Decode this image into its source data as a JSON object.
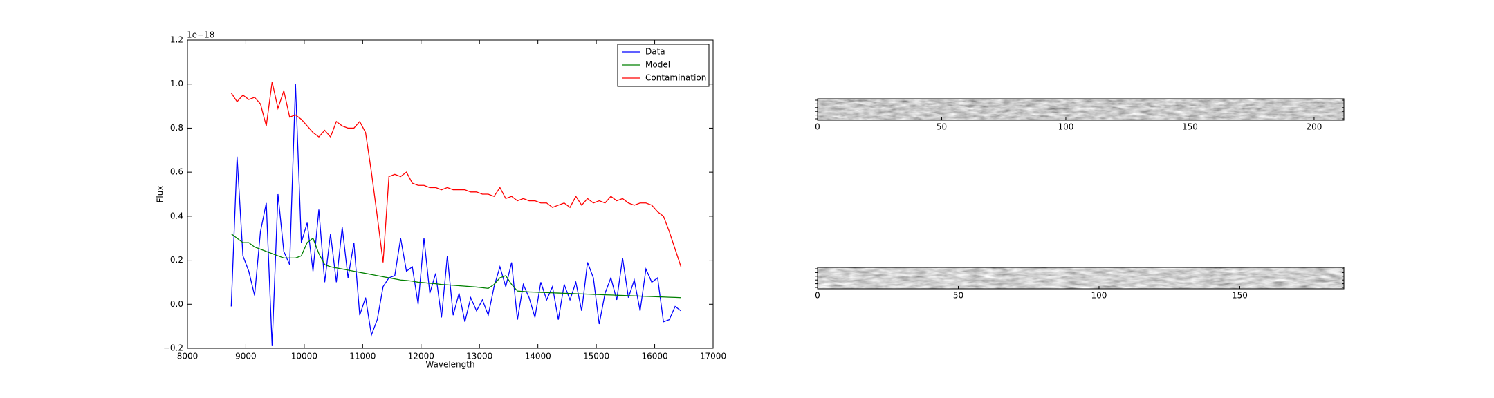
{
  "chart_data": [
    {
      "type": "line",
      "offset_text": "1e−18",
      "x_label": "Wavelength",
      "y_label": "Flux",
      "x": [
        8750,
        8850,
        8950,
        9050,
        9150,
        9250,
        9350,
        9450,
        9550,
        9650,
        9750,
        9850,
        9950,
        10050,
        10150,
        10250,
        10350,
        10450,
        10550,
        10650,
        10750,
        10850,
        10950,
        11050,
        11150,
        11250,
        11350,
        11450,
        11550,
        11650,
        11750,
        11850,
        11950,
        12050,
        12150,
        12250,
        12350,
        12450,
        12550,
        12650,
        12750,
        12850,
        12950,
        13050,
        13150,
        13250,
        13350,
        13450,
        13550,
        13650,
        13750,
        13850,
        13950,
        14050,
        14150,
        14250,
        14350,
        14450,
        14550,
        14650,
        14750,
        14850,
        14950,
        15050,
        15150,
        15250,
        15350,
        15450,
        15550,
        15650,
        15750,
        15850,
        15950,
        16050,
        16150,
        16250,
        16350,
        16450
      ],
      "series": [
        {
          "name": "Data",
          "color": "#0000ff",
          "values": [
            -0.01,
            0.67,
            0.22,
            0.15,
            0.04,
            0.33,
            0.46,
            -0.19,
            0.5,
            0.24,
            0.18,
            1.0,
            0.28,
            0.37,
            0.15,
            0.43,
            0.1,
            0.32,
            0.1,
            0.35,
            0.12,
            0.28,
            -0.05,
            0.03,
            -0.14,
            -0.07,
            0.08,
            0.12,
            0.13,
            0.3,
            0.15,
            0.17,
            0.0,
            0.3,
            0.05,
            0.14,
            -0.06,
            0.22,
            -0.05,
            0.05,
            -0.08,
            0.03,
            -0.03,
            0.02,
            -0.05,
            0.08,
            0.17,
            0.08,
            0.19,
            -0.07,
            0.09,
            0.03,
            -0.06,
            0.1,
            0.02,
            0.08,
            -0.07,
            0.09,
            0.02,
            0.1,
            -0.03,
            0.19,
            0.12,
            -0.09,
            0.05,
            0.12,
            0.02,
            0.21,
            0.03,
            0.11,
            -0.03,
            0.16,
            0.1,
            0.12,
            -0.08,
            -0.07,
            -0.01,
            -0.03
          ]
        },
        {
          "name": "Model",
          "color": "#008000",
          "values": [
            0.32,
            0.3,
            0.28,
            0.28,
            0.26,
            0.25,
            0.24,
            0.23,
            0.22,
            0.21,
            0.21,
            0.21,
            0.22,
            0.28,
            0.3,
            0.23,
            0.18,
            0.17,
            0.165,
            0.16,
            0.155,
            0.15,
            0.145,
            0.14,
            0.135,
            0.13,
            0.125,
            0.12,
            0.115,
            0.11,
            0.108,
            0.105,
            0.1,
            0.098,
            0.095,
            0.093,
            0.09,
            0.088,
            0.086,
            0.084,
            0.082,
            0.08,
            0.078,
            0.075,
            0.072,
            0.09,
            0.12,
            0.13,
            0.09,
            0.06,
            0.058,
            0.056,
            0.055,
            0.054,
            0.053,
            0.052,
            0.051,
            0.05,
            0.049,
            0.048,
            0.047,
            0.046,
            0.045,
            0.044,
            0.043,
            0.042,
            0.041,
            0.04,
            0.039,
            0.038,
            0.037,
            0.036,
            0.035,
            0.034,
            0.033,
            0.032,
            0.031,
            0.03
          ]
        },
        {
          "name": "Contamination",
          "color": "#ff0000",
          "values": [
            0.96,
            0.92,
            0.95,
            0.93,
            0.94,
            0.91,
            0.81,
            1.01,
            0.89,
            0.97,
            0.85,
            0.86,
            0.84,
            0.81,
            0.78,
            0.76,
            0.79,
            0.76,
            0.83,
            0.81,
            0.8,
            0.8,
            0.83,
            0.78,
            0.6,
            0.4,
            0.19,
            0.58,
            0.59,
            0.58,
            0.6,
            0.55,
            0.54,
            0.54,
            0.53,
            0.53,
            0.52,
            0.53,
            0.52,
            0.52,
            0.52,
            0.51,
            0.51,
            0.5,
            0.5,
            0.49,
            0.53,
            0.48,
            0.49,
            0.47,
            0.48,
            0.47,
            0.47,
            0.46,
            0.46,
            0.44,
            0.45,
            0.46,
            0.44,
            0.49,
            0.45,
            0.48,
            0.46,
            0.47,
            0.46,
            0.49,
            0.47,
            0.48,
            0.46,
            0.45,
            0.46,
            0.46,
            0.45,
            0.42,
            0.4,
            0.33,
            0.25,
            0.17
          ]
        }
      ],
      "xlim": [
        8000,
        17000
      ],
      "xticks": [
        8000,
        9000,
        10000,
        11000,
        12000,
        13000,
        14000,
        15000,
        16000,
        17000
      ],
      "ylim": [
        -0.2,
        1.2
      ],
      "yticks": [
        {
          "value": -0.2,
          "label": "−0.2"
        },
        {
          "value": 0,
          "label": "0.0"
        },
        0.2,
        0.4,
        0.6,
        0.8,
        {
          "value": 1,
          "label": "1.0"
        },
        1.2
      ],
      "legend": "upper right"
    },
    {
      "type": "image",
      "xlim": [
        0,
        212
      ],
      "xticks": [
        0,
        50,
        100,
        150,
        200
      ]
    },
    {
      "type": "image",
      "xlim": [
        0,
        187
      ],
      "xticks": [
        0,
        50,
        100,
        150
      ]
    }
  ]
}
